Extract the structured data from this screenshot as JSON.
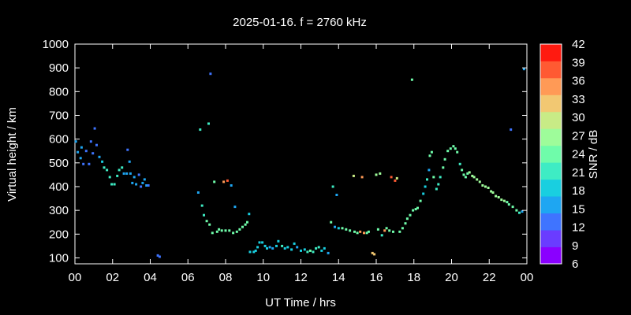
{
  "title": "2025-01-16. f = 2760 kHz",
  "chart_data": {
    "type": "scatter",
    "title": "2025-01-16. f = 2760 kHz",
    "xlabel": "UT Time / hrs",
    "ylabel": "Virtual height / km",
    "xlim": [
      0,
      24
    ],
    "ylim": [
      75,
      1000
    ],
    "x_ticks": [
      "00",
      "02",
      "04",
      "06",
      "08",
      "10",
      "12",
      "14",
      "16",
      "18",
      "20",
      "22",
      "00"
    ],
    "y_ticks": [
      "100",
      "200",
      "300",
      "400",
      "500",
      "600",
      "700",
      "800",
      "900",
      "1000"
    ],
    "grid": false,
    "legend": "none",
    "colorbar": {
      "label": "SNR / dB",
      "range": [
        6,
        42
      ],
      "ticks": [
        "6",
        "9",
        "12",
        "15",
        "18",
        "21",
        "24",
        "27",
        "30",
        "33",
        "36",
        "39",
        "42"
      ],
      "steps": [
        "#8a00ff",
        "#6a3cff",
        "#3f74ff",
        "#1ea6f2",
        "#19cfe0",
        "#3eecc4",
        "#6ffcaa",
        "#9efc9a",
        "#c8eb86",
        "#f2c872",
        "#ff9a56",
        "#ff5a32",
        "#ff1a10"
      ]
    },
    "points": [
      [
        0.05,
        590,
        15
      ],
      [
        0.15,
        545,
        15
      ],
      [
        0.3,
        520,
        15
      ],
      [
        0.35,
        565,
        15
      ],
      [
        0.45,
        495,
        12
      ],
      [
        0.6,
        550,
        12
      ],
      [
        0.75,
        495,
        12
      ],
      [
        0.85,
        590,
        12
      ],
      [
        0.95,
        540,
        12
      ],
      [
        1.05,
        645,
        12
      ],
      [
        1.15,
        575,
        12
      ],
      [
        1.3,
        525,
        15
      ],
      [
        1.45,
        505,
        18
      ],
      [
        1.55,
        480,
        21
      ],
      [
        1.7,
        470,
        21
      ],
      [
        1.85,
        440,
        21
      ],
      [
        1.95,
        410,
        21
      ],
      [
        2.1,
        410,
        21
      ],
      [
        2.25,
        445,
        21
      ],
      [
        2.35,
        470,
        21
      ],
      [
        2.5,
        480,
        21
      ],
      [
        2.6,
        455,
        15
      ],
      [
        2.75,
        455,
        15
      ],
      [
        2.8,
        555,
        12
      ],
      [
        2.9,
        505,
        15
      ],
      [
        2.95,
        455,
        15
      ],
      [
        3.05,
        415,
        15
      ],
      [
        3.15,
        440,
        15
      ],
      [
        3.25,
        410,
        15
      ],
      [
        3.4,
        450,
        12
      ],
      [
        3.5,
        400,
        12
      ],
      [
        3.6,
        415,
        15
      ],
      [
        3.7,
        430,
        15
      ],
      [
        3.8,
        405,
        15
      ],
      [
        3.9,
        405,
        12
      ],
      [
        4.4,
        110,
        12
      ],
      [
        4.5,
        105,
        12
      ],
      [
        6.55,
        375,
        15
      ],
      [
        6.65,
        640,
        21
      ],
      [
        6.75,
        320,
        21
      ],
      [
        6.85,
        280,
        21
      ],
      [
        7.0,
        255,
        24
      ],
      [
        7.1,
        665,
        21
      ],
      [
        7.15,
        240,
        24
      ],
      [
        7.2,
        875,
        12
      ],
      [
        7.3,
        205,
        24
      ],
      [
        7.4,
        420,
        24
      ],
      [
        7.55,
        210,
        24
      ],
      [
        7.65,
        220,
        24
      ],
      [
        7.8,
        215,
        24
      ],
      [
        7.9,
        420,
        36
      ],
      [
        8.0,
        215,
        24
      ],
      [
        8.1,
        425,
        39
      ],
      [
        8.2,
        215,
        24
      ],
      [
        8.3,
        405,
        15
      ],
      [
        8.4,
        205,
        24
      ],
      [
        8.5,
        315,
        15
      ],
      [
        8.6,
        210,
        24
      ],
      [
        8.75,
        220,
        24
      ],
      [
        8.9,
        230,
        24
      ],
      [
        9.05,
        240,
        24
      ],
      [
        9.15,
        250,
        24
      ],
      [
        9.25,
        285,
        18
      ],
      [
        9.3,
        125,
        18
      ],
      [
        9.5,
        125,
        18
      ],
      [
        9.6,
        130,
        18
      ],
      [
        9.7,
        145,
        18
      ],
      [
        9.8,
        165,
        18
      ],
      [
        9.95,
        165,
        18
      ],
      [
        10.1,
        150,
        18
      ],
      [
        10.2,
        140,
        18
      ],
      [
        10.35,
        145,
        15
      ],
      [
        10.5,
        140,
        15
      ],
      [
        10.7,
        150,
        18
      ],
      [
        10.8,
        170,
        18
      ],
      [
        11.0,
        150,
        21
      ],
      [
        11.15,
        140,
        18
      ],
      [
        11.3,
        145,
        18
      ],
      [
        11.5,
        135,
        18
      ],
      [
        11.65,
        160,
        18
      ],
      [
        11.8,
        145,
        15
      ],
      [
        12.0,
        130,
        18
      ],
      [
        12.2,
        135,
        18
      ],
      [
        12.35,
        125,
        21
      ],
      [
        12.5,
        130,
        24
      ],
      [
        12.65,
        125,
        21
      ],
      [
        12.8,
        140,
        21
      ],
      [
        12.95,
        145,
        21
      ],
      [
        13.1,
        130,
        18
      ],
      [
        13.25,
        140,
        18
      ],
      [
        13.45,
        120,
        15
      ],
      [
        13.6,
        250,
        24
      ],
      [
        13.7,
        400,
        21
      ],
      [
        13.8,
        230,
        15
      ],
      [
        13.9,
        365,
        15
      ],
      [
        14.0,
        225,
        18
      ],
      [
        14.2,
        225,
        24
      ],
      [
        14.4,
        220,
        24
      ],
      [
        14.6,
        215,
        24
      ],
      [
        14.8,
        445,
        30
      ],
      [
        14.85,
        210,
        24
      ],
      [
        15.0,
        205,
        24
      ],
      [
        15.15,
        210,
        36
      ],
      [
        15.25,
        440,
        36
      ],
      [
        15.35,
        205,
        36
      ],
      [
        15.5,
        205,
        24
      ],
      [
        15.6,
        210,
        24
      ],
      [
        15.8,
        120,
        33
      ],
      [
        15.9,
        115,
        33
      ],
      [
        16.0,
        450,
        27
      ],
      [
        16.1,
        220,
        24
      ],
      [
        16.2,
        455,
        27
      ],
      [
        16.3,
        195,
        21
      ],
      [
        16.45,
        215,
        36
      ],
      [
        16.55,
        225,
        24
      ],
      [
        16.7,
        215,
        24
      ],
      [
        16.8,
        440,
        39
      ],
      [
        16.9,
        210,
        24
      ],
      [
        17.0,
        425,
        39
      ],
      [
        17.1,
        435,
        30
      ],
      [
        17.25,
        210,
        24
      ],
      [
        17.4,
        225,
        24
      ],
      [
        17.55,
        245,
        24
      ],
      [
        17.65,
        265,
        24
      ],
      [
        17.8,
        280,
        24
      ],
      [
        17.9,
        850,
        24
      ],
      [
        17.95,
        300,
        24
      ],
      [
        18.1,
        305,
        24
      ],
      [
        18.2,
        310,
        24
      ],
      [
        18.35,
        340,
        24
      ],
      [
        18.5,
        370,
        18
      ],
      [
        18.6,
        400,
        18
      ],
      [
        18.7,
        430,
        21
      ],
      [
        18.8,
        470,
        15
      ],
      [
        18.85,
        530,
        24
      ],
      [
        18.95,
        545,
        24
      ],
      [
        19.05,
        440,
        24
      ],
      [
        19.2,
        390,
        21
      ],
      [
        19.3,
        410,
        21
      ],
      [
        19.4,
        440,
        21
      ],
      [
        19.55,
        480,
        24
      ],
      [
        19.65,
        515,
        24
      ],
      [
        19.8,
        550,
        24
      ],
      [
        19.95,
        560,
        24
      ],
      [
        20.1,
        570,
        24
      ],
      [
        20.2,
        560,
        24
      ],
      [
        20.3,
        545,
        24
      ],
      [
        20.45,
        495,
        21
      ],
      [
        20.55,
        470,
        24
      ],
      [
        20.65,
        450,
        24
      ],
      [
        20.75,
        440,
        24
      ],
      [
        20.85,
        455,
        24
      ],
      [
        20.95,
        460,
        27
      ],
      [
        21.1,
        445,
        27
      ],
      [
        21.2,
        440,
        27
      ],
      [
        21.35,
        430,
        27
      ],
      [
        21.5,
        420,
        27
      ],
      [
        21.65,
        405,
        27
      ],
      [
        21.8,
        400,
        27
      ],
      [
        21.95,
        395,
        27
      ],
      [
        22.1,
        380,
        27
      ],
      [
        22.2,
        375,
        27
      ],
      [
        22.35,
        360,
        27
      ],
      [
        22.5,
        355,
        27
      ],
      [
        22.65,
        345,
        27
      ],
      [
        22.8,
        340,
        27
      ],
      [
        22.95,
        335,
        24
      ],
      [
        23.05,
        325,
        24
      ],
      [
        23.15,
        640,
        12
      ],
      [
        23.25,
        315,
        24
      ],
      [
        23.45,
        300,
        24
      ],
      [
        23.6,
        290,
        21
      ],
      [
        23.75,
        295,
        15
      ],
      [
        23.85,
        895,
        15
      ]
    ]
  }
}
